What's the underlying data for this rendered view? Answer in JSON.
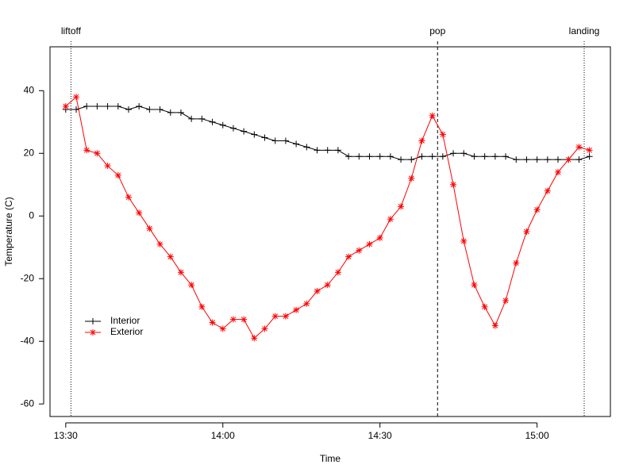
{
  "chart_data": {
    "type": "line",
    "x_label": "Time",
    "y_label": "Temperature (C)",
    "x": [
      "13:30",
      "13:32",
      "13:34",
      "13:36",
      "13:38",
      "13:40",
      "13:42",
      "13:44",
      "13:46",
      "13:48",
      "13:50",
      "13:52",
      "13:54",
      "13:56",
      "13:58",
      "14:00",
      "14:02",
      "14:04",
      "14:06",
      "14:08",
      "14:10",
      "14:12",
      "14:14",
      "14:16",
      "14:18",
      "14:20",
      "14:22",
      "14:24",
      "14:26",
      "14:28",
      "14:30",
      "14:32",
      "14:34",
      "14:36",
      "14:38",
      "14:40",
      "14:42",
      "14:44",
      "14:46",
      "14:48",
      "14:50",
      "14:52",
      "14:54",
      "14:56",
      "14:58",
      "15:00",
      "15:02",
      "15:04",
      "15:06",
      "15:08",
      "15:10"
    ],
    "series": [
      {
        "name": "Interior",
        "color": "#000000",
        "marker": "plus",
        "values": [
          34,
          34,
          35,
          35,
          35,
          35,
          34,
          35,
          34,
          34,
          33,
          33,
          31,
          31,
          30,
          29,
          28,
          27,
          26,
          25,
          24,
          24,
          23,
          22,
          21,
          21,
          21,
          19,
          19,
          19,
          19,
          19,
          18,
          18,
          19,
          19,
          19,
          20,
          20,
          19,
          19,
          19,
          19,
          18,
          18,
          18,
          18,
          18,
          18,
          18,
          19
        ]
      },
      {
        "name": "Exterior",
        "color": "#ff0000",
        "marker": "star",
        "values": [
          35,
          38,
          21,
          20,
          16,
          13,
          6,
          1,
          -4,
          -9,
          -13,
          -18,
          -22,
          -29,
          -34,
          -36,
          -33,
          -33,
          -39,
          -36,
          -32,
          -32,
          -30,
          -28,
          -24,
          -22,
          -18,
          -13,
          -11,
          -9,
          -7,
          -1,
          3,
          12,
          24,
          32,
          26,
          10,
          -8,
          -22,
          -29,
          -35,
          -27,
          -15,
          -5,
          2,
          8,
          14,
          18,
          22,
          21
        ]
      }
    ],
    "events": [
      {
        "label": "liftoff",
        "time": "13:31",
        "style": "dotted"
      },
      {
        "label": "pop",
        "time": "14:41",
        "style": "dashed"
      },
      {
        "label": "landing",
        "time": "15:09",
        "style": "dotted"
      }
    ],
    "xlim": [
      "13:27",
      "15:14"
    ],
    "xticks": [
      "13:30",
      "14:00",
      "14:30",
      "15:00"
    ],
    "ylim": [
      -64,
      54
    ],
    "yticks": [
      -60,
      -40,
      -20,
      0,
      20,
      40
    ],
    "legend": "bottom-left"
  }
}
